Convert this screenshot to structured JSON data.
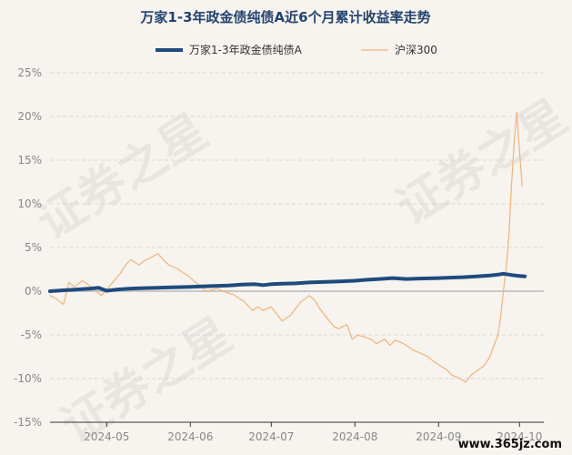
{
  "watermark": {
    "text_a": "证券之星",
    "text_b": "证券之星",
    "text_c": "证券之星",
    "site": "www.365jz.com"
  },
  "chart_data": {
    "type": "line",
    "title": "万家1-3年政金债纯债A近6个月累计收益率走势",
    "legend_position": "top",
    "grid": true,
    "ylim": [
      -15,
      25
    ],
    "yticks": [
      "25%",
      "20%",
      "15%",
      "10%",
      "5%",
      "0%",
      "-5%",
      "-10%",
      "-15%"
    ],
    "ytick_values": [
      25,
      20,
      15,
      10,
      5,
      0,
      -5,
      -10,
      -15
    ],
    "xlim": [
      "2024-04-10",
      "2024-10-10"
    ],
    "xticks": [
      {
        "label": "2024-05",
        "date": "2024-05-01"
      },
      {
        "label": "2024-06",
        "date": "2024-06-01"
      },
      {
        "label": "2024-07",
        "date": "2024-07-01"
      },
      {
        "label": "2024-08",
        "date": "2024-08-01"
      },
      {
        "label": "2024-09",
        "date": "2024-09-01"
      },
      {
        "label": "2024-10",
        "date": "2024-10-01"
      }
    ],
    "series": [
      {
        "name": "万家1-3年政金债纯债A",
        "color": "#1e4a7e",
        "width": 4,
        "points": [
          [
            "2024-04-10",
            0.0
          ],
          [
            "2024-04-15",
            0.1
          ],
          [
            "2024-04-20",
            0.2
          ],
          [
            "2024-04-25",
            0.3
          ],
          [
            "2024-04-28",
            0.4
          ],
          [
            "2024-05-01",
            0.05
          ],
          [
            "2024-05-05",
            0.2
          ],
          [
            "2024-05-10",
            0.3
          ],
          [
            "2024-05-15",
            0.35
          ],
          [
            "2024-05-20",
            0.4
          ],
          [
            "2024-05-25",
            0.45
          ],
          [
            "2024-06-01",
            0.5
          ],
          [
            "2024-06-05",
            0.55
          ],
          [
            "2024-06-10",
            0.6
          ],
          [
            "2024-06-15",
            0.65
          ],
          [
            "2024-06-20",
            0.75
          ],
          [
            "2024-06-25",
            0.8
          ],
          [
            "2024-06-28",
            0.7
          ],
          [
            "2024-07-01",
            0.8
          ],
          [
            "2024-07-05",
            0.85
          ],
          [
            "2024-07-10",
            0.9
          ],
          [
            "2024-07-15",
            1.0
          ],
          [
            "2024-07-20",
            1.05
          ],
          [
            "2024-07-25",
            1.1
          ],
          [
            "2024-08-01",
            1.2
          ],
          [
            "2024-08-05",
            1.3
          ],
          [
            "2024-08-10",
            1.4
          ],
          [
            "2024-08-15",
            1.5
          ],
          [
            "2024-08-20",
            1.4
          ],
          [
            "2024-08-25",
            1.45
          ],
          [
            "2024-09-01",
            1.5
          ],
          [
            "2024-09-05",
            1.55
          ],
          [
            "2024-09-10",
            1.6
          ],
          [
            "2024-09-15",
            1.7
          ],
          [
            "2024-09-20",
            1.8
          ],
          [
            "2024-09-23",
            1.9
          ],
          [
            "2024-09-25",
            2.0
          ],
          [
            "2024-09-28",
            1.85
          ],
          [
            "2024-10-01",
            1.75
          ],
          [
            "2024-10-03",
            1.7
          ]
        ]
      },
      {
        "name": "沪深300",
        "color": "#f0b47c",
        "width": 1.2,
        "points": [
          [
            "2024-04-10",
            -0.5
          ],
          [
            "2024-04-12",
            -0.8
          ],
          [
            "2024-04-15",
            -1.5
          ],
          [
            "2024-04-17",
            1.0
          ],
          [
            "2024-04-19",
            0.5
          ],
          [
            "2024-04-22",
            1.2
          ],
          [
            "2024-04-24",
            0.8
          ],
          [
            "2024-04-26",
            0.3
          ],
          [
            "2024-04-29",
            -0.5
          ],
          [
            "2024-05-01",
            0.2
          ],
          [
            "2024-05-06",
            2.0
          ],
          [
            "2024-05-08",
            3.0
          ],
          [
            "2024-05-10",
            3.6
          ],
          [
            "2024-05-13",
            3.0
          ],
          [
            "2024-05-15",
            3.5
          ],
          [
            "2024-05-17",
            3.8
          ],
          [
            "2024-05-20",
            4.3
          ],
          [
            "2024-05-22",
            3.6
          ],
          [
            "2024-05-24",
            3.0
          ],
          [
            "2024-05-27",
            2.6
          ],
          [
            "2024-05-29",
            2.2
          ],
          [
            "2024-05-31",
            1.8
          ],
          [
            "2024-06-03",
            1.0
          ],
          [
            "2024-06-05",
            0.5
          ],
          [
            "2024-06-07",
            0.0
          ],
          [
            "2024-06-11",
            0.3
          ],
          [
            "2024-06-13",
            0.0
          ],
          [
            "2024-06-17",
            -0.4
          ],
          [
            "2024-06-19",
            -0.8
          ],
          [
            "2024-06-21",
            -1.2
          ],
          [
            "2024-06-24",
            -2.2
          ],
          [
            "2024-06-26",
            -1.8
          ],
          [
            "2024-06-28",
            -2.2
          ],
          [
            "2024-07-01",
            -1.8
          ],
          [
            "2024-07-03",
            -2.6
          ],
          [
            "2024-07-05",
            -3.4
          ],
          [
            "2024-07-08",
            -2.8
          ],
          [
            "2024-07-10",
            -2.0
          ],
          [
            "2024-07-12",
            -1.2
          ],
          [
            "2024-07-15",
            -0.5
          ],
          [
            "2024-07-17",
            -1.0
          ],
          [
            "2024-07-19",
            -2.0
          ],
          [
            "2024-07-22",
            -3.2
          ],
          [
            "2024-07-24",
            -4.0
          ],
          [
            "2024-07-26",
            -4.3
          ],
          [
            "2024-07-29",
            -3.8
          ],
          [
            "2024-07-31",
            -5.5
          ],
          [
            "2024-08-02",
            -5.0
          ],
          [
            "2024-08-05",
            -5.3
          ],
          [
            "2024-08-07",
            -5.5
          ],
          [
            "2024-08-09",
            -6.0
          ],
          [
            "2024-08-12",
            -5.5
          ],
          [
            "2024-08-14",
            -6.2
          ],
          [
            "2024-08-16",
            -5.6
          ],
          [
            "2024-08-19",
            -6.0
          ],
          [
            "2024-08-21",
            -6.4
          ],
          [
            "2024-08-23",
            -6.8
          ],
          [
            "2024-08-26",
            -7.2
          ],
          [
            "2024-08-28",
            -7.5
          ],
          [
            "2024-08-30",
            -8.0
          ],
          [
            "2024-09-02",
            -8.6
          ],
          [
            "2024-09-04",
            -9.0
          ],
          [
            "2024-09-06",
            -9.6
          ],
          [
            "2024-09-09",
            -10.0
          ],
          [
            "2024-09-11",
            -10.4
          ],
          [
            "2024-09-13",
            -9.6
          ],
          [
            "2024-09-18",
            -8.5
          ],
          [
            "2024-09-20",
            -7.5
          ],
          [
            "2024-09-23",
            -5.0
          ],
          [
            "2024-09-24",
            -3.0
          ],
          [
            "2024-09-25",
            0.0
          ],
          [
            "2024-09-26",
            2.5
          ],
          [
            "2024-09-27",
            6.0
          ],
          [
            "2024-09-28",
            12.0
          ],
          [
            "2024-09-29",
            17.0
          ],
          [
            "2024-09-30",
            20.5
          ],
          [
            "2024-10-01",
            16.0
          ],
          [
            "2024-10-02",
            12.0
          ]
        ]
      }
    ]
  }
}
